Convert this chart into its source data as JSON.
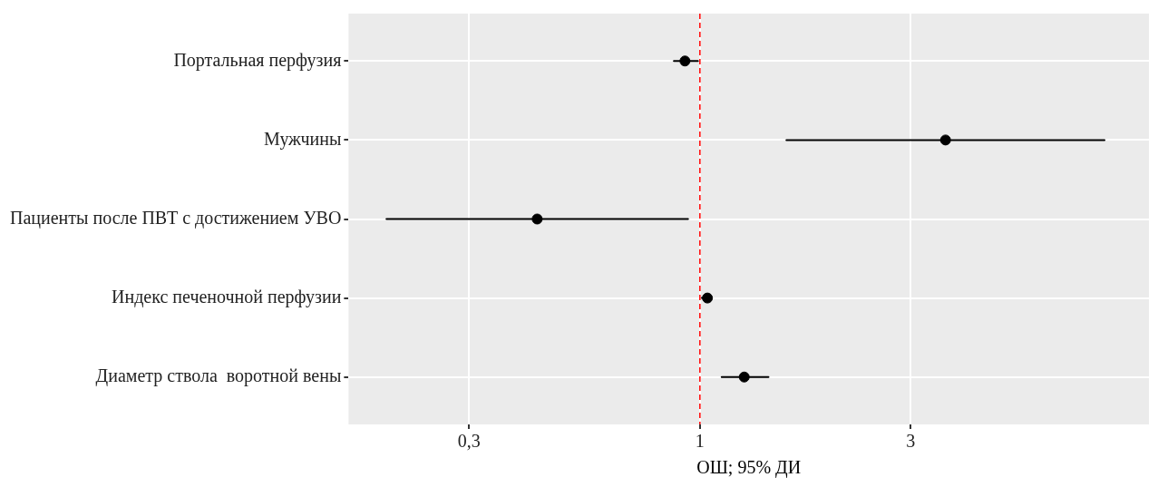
{
  "chart_data": {
    "type": "scatter",
    "orientation": "horizontal",
    "categories": [
      "Портальная перфузия",
      "Мужчины",
      "Пациенты после ПВТ с достижением УВО",
      "Индекс печеночной перфузии",
      "Диаметр ствола  воротной вены"
    ],
    "series": [
      {
        "color": "#000000",
        "values": [
          0.925,
          3.6,
          0.428,
          1.04,
          1.26
        ],
        "errors": [
          [
            0.873,
            0.99
          ],
          [
            1.57,
            8.25
          ],
          [
            0.195,
            0.94
          ],
          [
            1.01,
            1.06
          ],
          [
            1.12,
            1.43
          ]
        ]
      }
    ],
    "xlabel": "ОШ; 95% ДИ",
    "log": "x",
    "xlim": [
      0.16,
      10.4
    ],
    "xticks": [
      {
        "value": 0.3,
        "label": "0,3"
      },
      1,
      3
    ],
    "ref_lines": [
      {
        "axis": "x",
        "value": 1,
        "color": "#ff0000",
        "line_style": "dashed"
      }
    ],
    "grid": true,
    "marker": "circle"
  }
}
